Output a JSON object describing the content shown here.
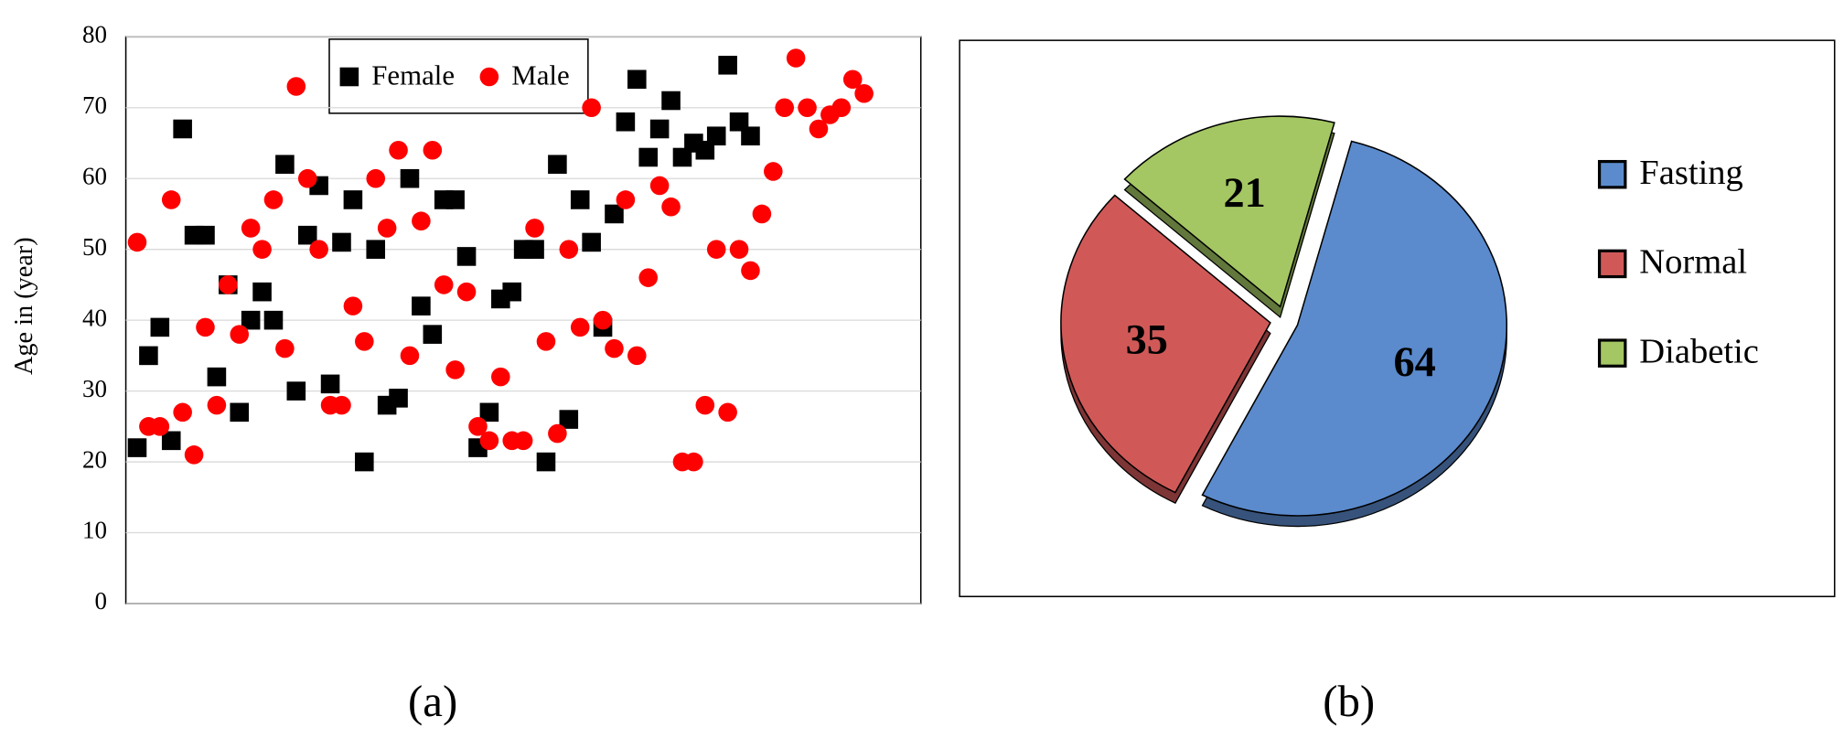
{
  "chart_data": [
    {
      "type": "scatter",
      "y_label": "Age in (year)",
      "caption": "(a)",
      "xlim": [
        0,
        70
      ],
      "ylim": [
        0,
        80
      ],
      "yticks": [
        0,
        10,
        20,
        30,
        40,
        50,
        60,
        70,
        80
      ],
      "grid": true,
      "legend": "top",
      "series": [
        {
          "name": "Female",
          "color": "#000000",
          "marker": "square",
          "x": [
            1,
            2,
            3,
            4,
            5,
            6,
            7,
            8,
            9,
            10,
            11,
            12,
            13,
            14,
            15,
            16,
            17,
            18,
            19,
            20,
            21,
            22,
            23,
            24,
            25,
            26,
            27,
            28,
            29,
            30,
            31,
            32,
            33,
            34,
            35,
            36,
            37,
            38,
            39,
            40,
            41,
            42,
            43,
            44,
            45,
            46,
            47,
            48,
            49,
            50,
            51,
            52,
            53,
            54,
            55
          ],
          "values": [
            22,
            35,
            39,
            23,
            67,
            52,
            52,
            32,
            45,
            27,
            40,
            44,
            40,
            62,
            30,
            52,
            59,
            31,
            51,
            57,
            20,
            50,
            28,
            29,
            60,
            42,
            38,
            57,
            57,
            49,
            22,
            27,
            43,
            44,
            50,
            50,
            20,
            62,
            26,
            57,
            51,
            39,
            55,
            68,
            74,
            63,
            67,
            71,
            63,
            65,
            64,
            66,
            76,
            68,
            66
          ]
        },
        {
          "name": "Male",
          "color": "#ff0000",
          "marker": "circle",
          "x": [
            1,
            2,
            3,
            4,
            5,
            6,
            7,
            8,
            9,
            10,
            11,
            12,
            13,
            14,
            15,
            16,
            17,
            18,
            19,
            20,
            21,
            22,
            23,
            24,
            25,
            26,
            27,
            28,
            29,
            30,
            31,
            32,
            33,
            34,
            35,
            36,
            37,
            38,
            39,
            40,
            41,
            42,
            43,
            44,
            45,
            46,
            47,
            48,
            49,
            50,
            51,
            52,
            53,
            54,
            55,
            56,
            57,
            58,
            59,
            60,
            61,
            62,
            63,
            64,
            65
          ],
          "values": [
            51,
            25,
            25,
            57,
            27,
            21,
            39,
            28,
            45,
            38,
            53,
            50,
            57,
            36,
            73,
            60,
            50,
            28,
            28,
            42,
            37,
            60,
            53,
            64,
            35,
            54,
            64,
            45,
            33,
            44,
            25,
            23,
            32,
            23,
            23,
            53,
            37,
            24,
            50,
            39,
            70,
            40,
            36,
            57,
            35,
            46,
            59,
            56,
            20,
            20,
            28,
            50,
            27,
            50,
            47,
            55,
            61,
            70,
            77,
            70,
            67,
            69,
            70,
            74,
            72
          ]
        }
      ]
    },
    {
      "type": "pie",
      "caption": "(b)",
      "legend": "right",
      "categories": [
        "Fasting",
        "Normal",
        "Diabetic"
      ],
      "values": [
        64,
        35,
        21
      ],
      "colors": [
        "#5b8bcd",
        "#d05958",
        "#a4c763"
      ]
    }
  ]
}
